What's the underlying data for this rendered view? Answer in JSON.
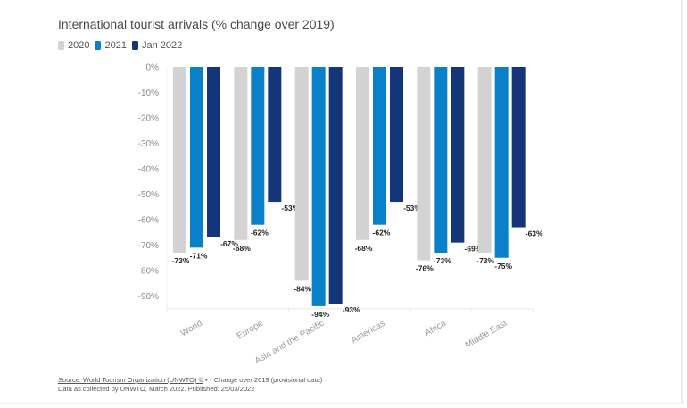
{
  "chart_data": {
    "type": "bar",
    "title": "International tourist arrivals (% change over 2019)",
    "xlabel": "",
    "ylabel": "",
    "ylim": [
      -95,
      0
    ],
    "yticks": [
      0,
      -10,
      -20,
      -30,
      -40,
      -50,
      -60,
      -70,
      -80,
      -90
    ],
    "ytick_labels": [
      "0%",
      "-10%",
      "-20%",
      "-30%",
      "-40%",
      "-50%",
      "-60%",
      "-70%",
      "-80%",
      "-90%"
    ],
    "categories": [
      "World",
      "Europe",
      "Asia and the Pacific",
      "Americas",
      "Africa",
      "Middle East"
    ],
    "series": [
      {
        "name": "2020",
        "color": "#d3d3d3",
        "values": [
          -73,
          -68,
          -84,
          -68,
          -76,
          -73
        ]
      },
      {
        "name": "2021",
        "color": "#0a80c8",
        "values": [
          -71,
          -62,
          -94,
          -62,
          -73,
          -75
        ]
      },
      {
        "name": "Jan 2022",
        "color": "#15357a",
        "values": [
          -67,
          -53,
          -93,
          -53,
          -69,
          -63
        ]
      }
    ],
    "data_labels": [
      [
        "-73%",
        "-68%",
        "-84%",
        "-68%",
        "-76%",
        "-73%"
      ],
      [
        "-71%",
        "-62%",
        "-94%",
        "-62%",
        "-73%",
        "-75%"
      ],
      [
        "-67%",
        "-53%",
        "-93%",
        "-53%",
        "-69%",
        "-63%"
      ]
    ],
    "grid": false,
    "legend_position": "top-left"
  },
  "footer": {
    "source_link": "Source: World Tourism Organization (UNWTO) ©",
    "source_note": " • * Change over 2019 (provisional data)",
    "line2": "Data as collected by UNWTO, March 2022. Published: 25/03/2022"
  }
}
